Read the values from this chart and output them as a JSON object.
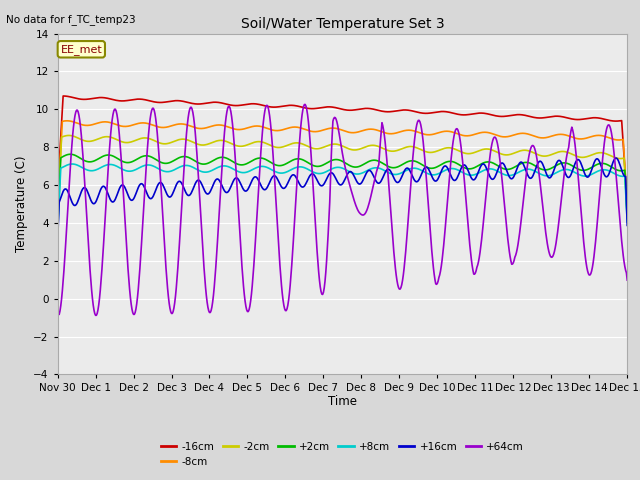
{
  "title": "Soil/Water Temperature Set 3",
  "xlabel": "Time",
  "ylabel": "Temperature (C)",
  "no_data_text": "No data for f_TC_temp23",
  "annotation_text": "EE_met",
  "ylim": [
    -4,
    14
  ],
  "bg_color": "#d8d8d8",
  "plot_bg_color": "#ebebeb",
  "series": {
    "-16cm": {
      "color": "#cc0000",
      "linewidth": 1.2
    },
    "-8cm": {
      "color": "#ff8c00",
      "linewidth": 1.2
    },
    "-2cm": {
      "color": "#cccc00",
      "linewidth": 1.2
    },
    "+2cm": {
      "color": "#00bb00",
      "linewidth": 1.2
    },
    "+8cm": {
      "color": "#00cccc",
      "linewidth": 1.2
    },
    "+16cm": {
      "color": "#0000cc",
      "linewidth": 1.2
    },
    "+64cm": {
      "color": "#9900cc",
      "linewidth": 1.2
    }
  },
  "xtick_labels": [
    "Nov 30",
    "Dec 1",
    "Dec 2",
    "Dec 3",
    "Dec 4",
    "Dec 5",
    "Dec 6",
    "Dec 7",
    "Dec 8",
    "Dec 9",
    "Dec 10",
    "Dec 11",
    "Dec 12",
    "Dec 13",
    "Dec 14",
    "Dec 15"
  ],
  "ytick_values": [
    -4,
    -2,
    0,
    2,
    4,
    6,
    8,
    10,
    12,
    14
  ]
}
